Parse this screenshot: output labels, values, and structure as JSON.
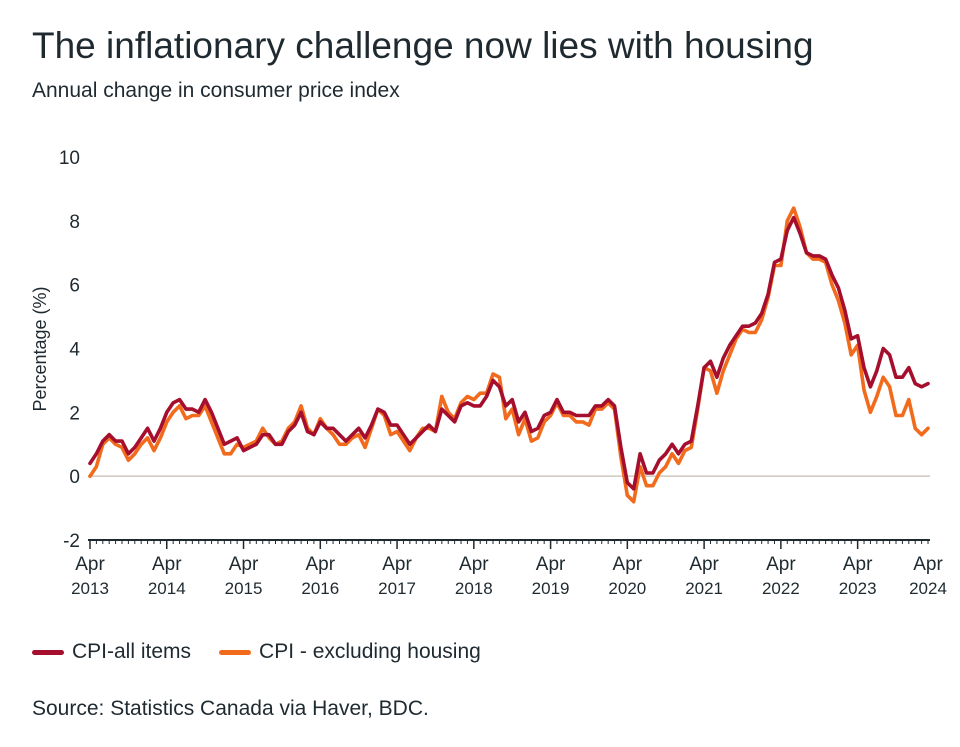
{
  "colors": {
    "cpi_all": "#a50f2d",
    "cpi_ex_housing": "#f26b1d",
    "zero_line": "#cfc7bc",
    "axis": "#1f2a30"
  },
  "legend": {
    "items": [
      {
        "label": "CPI-all items",
        "color": "#a50f2d"
      },
      {
        "label": "CPI - excluding housing",
        "color": "#f26b1d"
      }
    ]
  },
  "source": "Source: Statistics Canada via Haver, BDC.",
  "chart_data": {
    "type": "line",
    "title": "The inflationary challenge now lies with housing",
    "subtitle": "Annual change in consumer price index",
    "xlabel": "",
    "ylabel": "Percentage (%)",
    "ylim": [
      -2,
      10
    ],
    "yticks": [
      "10",
      "8",
      "6",
      "4",
      "2",
      "0",
      "-2"
    ],
    "x_start": "2013-04",
    "x_end": "2024-06",
    "frequency": "monthly",
    "xticks": [
      {
        "month": "Apr",
        "year": "2013"
      },
      {
        "month": "Apr",
        "year": "2014"
      },
      {
        "month": "Apr",
        "year": "2015"
      },
      {
        "month": "Apr",
        "year": "2016"
      },
      {
        "month": "Apr",
        "year": "2017"
      },
      {
        "month": "Apr",
        "year": "2018"
      },
      {
        "month": "Apr",
        "year": "2019"
      },
      {
        "month": "Apr",
        "year": "2020"
      },
      {
        "month": "Apr",
        "year": "2021"
      },
      {
        "month": "Apr",
        "year": "2022"
      },
      {
        "month": "Apr",
        "year": "2023"
      },
      {
        "month": "Apr",
        "year": "2024"
      }
    ],
    "grid": false,
    "legend_position": "bottom-left",
    "series": [
      {
        "name": "CPI-all items",
        "values": [
          0.4,
          0.7,
          1.1,
          1.3,
          1.1,
          1.1,
          0.7,
          0.9,
          1.2,
          1.5,
          1.1,
          1.5,
          2.0,
          2.3,
          2.4,
          2.1,
          2.1,
          2.0,
          2.4,
          2.0,
          1.5,
          1.0,
          1.1,
          1.2,
          0.8,
          0.9,
          1.0,
          1.3,
          1.3,
          1.0,
          1.0,
          1.4,
          1.6,
          2.0,
          1.4,
          1.3,
          1.7,
          1.5,
          1.5,
          1.3,
          1.1,
          1.3,
          1.5,
          1.2,
          1.6,
          2.1,
          2.0,
          1.6,
          1.6,
          1.3,
          1.0,
          1.2,
          1.4,
          1.6,
          1.4,
          2.1,
          1.9,
          1.7,
          2.2,
          2.3,
          2.2,
          2.2,
          2.5,
          3.0,
          2.8,
          2.2,
          2.4,
          1.7,
          2.0,
          1.4,
          1.5,
          1.9,
          2.0,
          2.4,
          2.0,
          2.0,
          1.9,
          1.9,
          1.9,
          2.2,
          2.2,
          2.4,
          2.2,
          0.9,
          -0.2,
          -0.4,
          0.7,
          0.1,
          0.1,
          0.5,
          0.7,
          1.0,
          0.7,
          1.0,
          1.1,
          2.2,
          3.4,
          3.6,
          3.1,
          3.7,
          4.1,
          4.4,
          4.7,
          4.7,
          4.8,
          5.1,
          5.7,
          6.7,
          6.8,
          7.7,
          8.1,
          7.6,
          7.0,
          6.9,
          6.9,
          6.8,
          6.3,
          5.9,
          5.2,
          4.3,
          4.4,
          3.4,
          2.8,
          3.3,
          4.0,
          3.8,
          3.1,
          3.1,
          3.4,
          2.9,
          2.8,
          2.9
        ]
      },
      {
        "name": "CPI - excluding housing",
        "values": [
          0.0,
          0.3,
          1.0,
          1.2,
          1.0,
          0.9,
          0.5,
          0.7,
          1.0,
          1.2,
          0.8,
          1.2,
          1.7,
          2.0,
          2.2,
          1.8,
          1.9,
          1.9,
          2.2,
          1.7,
          1.2,
          0.7,
          0.7,
          1.0,
          0.9,
          1.0,
          1.1,
          1.5,
          1.2,
          1.0,
          1.1,
          1.5,
          1.7,
          2.2,
          1.5,
          1.3,
          1.8,
          1.5,
          1.3,
          1.0,
          1.0,
          1.2,
          1.3,
          0.9,
          1.5,
          2.1,
          1.9,
          1.3,
          1.4,
          1.1,
          0.8,
          1.2,
          1.5,
          1.5,
          1.4,
          2.5,
          2.0,
          1.8,
          2.3,
          2.5,
          2.4,
          2.6,
          2.6,
          3.2,
          3.1,
          1.8,
          2.1,
          1.3,
          1.8,
          1.1,
          1.2,
          1.7,
          1.9,
          2.3,
          1.9,
          1.9,
          1.7,
          1.7,
          1.6,
          2.1,
          2.1,
          2.3,
          2.1,
          0.6,
          -0.6,
          -0.8,
          0.3,
          -0.3,
          -0.3,
          0.1,
          0.3,
          0.7,
          0.4,
          0.8,
          0.9,
          2.1,
          3.4,
          3.3,
          2.6,
          3.3,
          3.8,
          4.3,
          4.6,
          4.5,
          4.5,
          4.9,
          5.6,
          6.6,
          6.6,
          8.0,
          8.4,
          7.8,
          7.0,
          6.8,
          6.8,
          6.7,
          6.0,
          5.5,
          4.8,
          3.8,
          4.1,
          2.7,
          2.0,
          2.5,
          3.1,
          2.8,
          1.9,
          1.9,
          2.4,
          1.5,
          1.3,
          1.5
        ]
      }
    ]
  }
}
